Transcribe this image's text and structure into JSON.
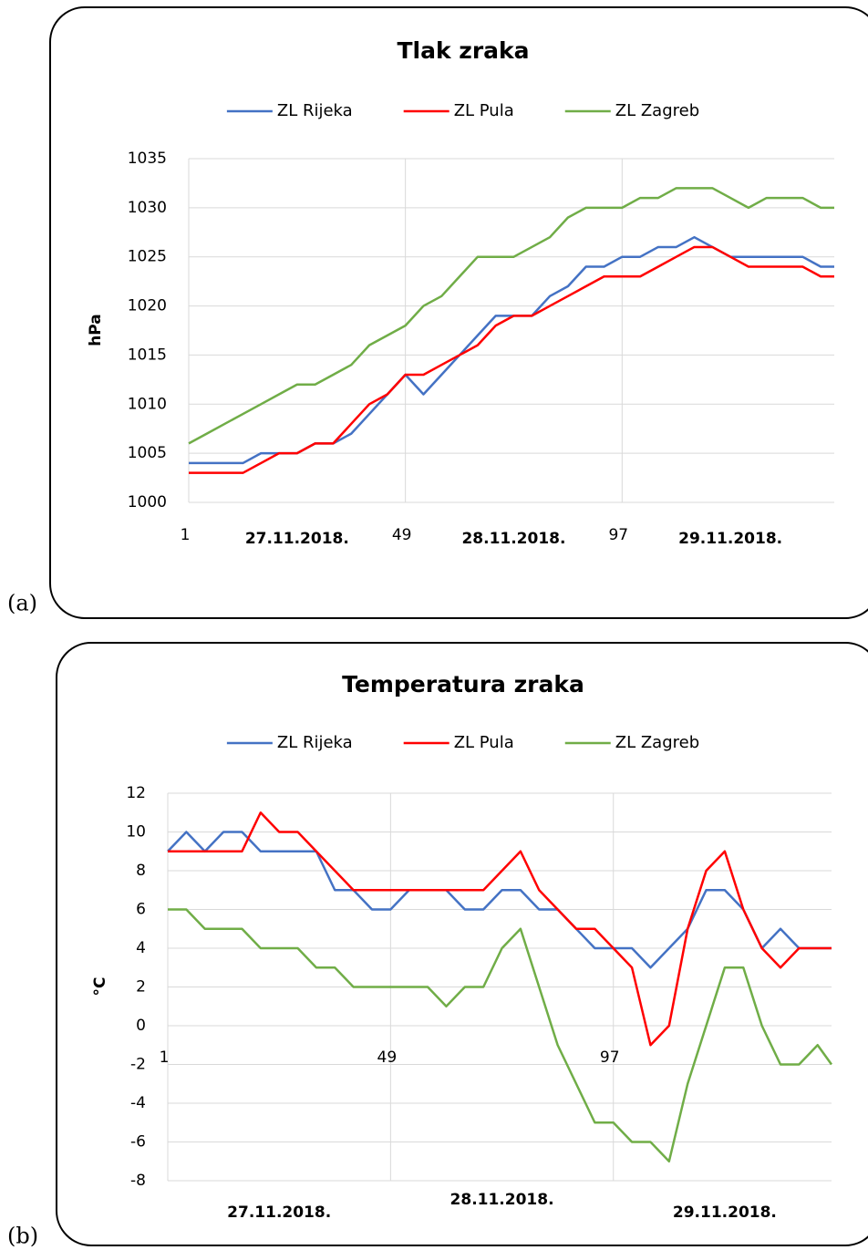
{
  "chart_data": [
    {
      "type": "line",
      "panel_label": "(a)",
      "title": "Tlak zraka",
      "y_label": "hPa",
      "x": [
        1,
        5,
        9,
        13,
        17,
        21,
        25,
        29,
        33,
        37,
        41,
        45,
        49,
        53,
        57,
        61,
        65,
        69,
        73,
        77,
        81,
        85,
        89,
        93,
        97,
        101,
        105,
        109,
        113,
        117,
        121,
        125,
        129,
        133,
        137,
        141,
        144
      ],
      "xlim": [
        1,
        144
      ],
      "xticks": [
        1,
        49,
        97
      ],
      "ylim": [
        1000,
        1035
      ],
      "yticks": [
        1000,
        1005,
        1010,
        1015,
        1020,
        1025,
        1030,
        1035
      ],
      "grid": true,
      "date_labels": [
        "27.11.2018.",
        "28.11.2018.",
        "29.11.2018."
      ],
      "legend": "top",
      "series": [
        {
          "name": "ZL Rijeka",
          "color": "#4472c4",
          "values": [
            1004,
            1004,
            1004,
            1004,
            1005,
            1005,
            1005,
            1006,
            1006,
            1007,
            1009,
            1011,
            1013,
            1011,
            1013,
            1015,
            1017,
            1019,
            1019,
            1019,
            1021,
            1022,
            1024,
            1024,
            1025,
            1025,
            1026,
            1026,
            1027,
            1026,
            1025,
            1025,
            1025,
            1025,
            1025,
            1024,
            1024
          ]
        },
        {
          "name": "ZL Pula",
          "color": "#ff0000",
          "values": [
            1003,
            1003,
            1003,
            1003,
            1004,
            1005,
            1005,
            1006,
            1006,
            1008,
            1010,
            1011,
            1013,
            1013,
            1014,
            1015,
            1016,
            1018,
            1019,
            1019,
            1020,
            1021,
            1022,
            1023,
            1023,
            1023,
            1024,
            1025,
            1026,
            1026,
            1025,
            1024,
            1024,
            1024,
            1024,
            1023,
            1023
          ]
        },
        {
          "name": "ZL Zagreb",
          "color": "#70ad47",
          "values": [
            1006,
            1007,
            1008,
            1009,
            1010,
            1011,
            1012,
            1012,
            1013,
            1014,
            1016,
            1017,
            1018,
            1020,
            1021,
            1023,
            1025,
            1025,
            1025,
            1026,
            1027,
            1029,
            1030,
            1030,
            1030,
            1031,
            1031,
            1032,
            1032,
            1032,
            1031,
            1030,
            1031,
            1031,
            1031,
            1030,
            1030
          ]
        }
      ]
    },
    {
      "type": "line",
      "panel_label": "(b)",
      "title": "Temperatura zraka",
      "y_label": "°C",
      "x": [
        1,
        5,
        9,
        13,
        17,
        21,
        25,
        29,
        33,
        37,
        41,
        45,
        49,
        53,
        57,
        61,
        65,
        69,
        73,
        77,
        81,
        85,
        89,
        93,
        97,
        101,
        105,
        109,
        113,
        117,
        121,
        125,
        129,
        133,
        137,
        141,
        144
      ],
      "xlim": [
        1,
        144
      ],
      "xticks": [
        1,
        49,
        97
      ],
      "ylim": [
        -8,
        12
      ],
      "yticks": [
        -8,
        -6,
        -4,
        -2,
        0,
        2,
        4,
        6,
        8,
        10,
        12
      ],
      "grid": true,
      "date_labels": [
        "27.11.2018.",
        "28.11.2018.",
        "29.11.2018."
      ],
      "legend": "top",
      "series": [
        {
          "name": "ZL Rijeka",
          "color": "#4472c4",
          "values": [
            9,
            10,
            9,
            10,
            10,
            9,
            9,
            9,
            9,
            7,
            7,
            6,
            6,
            7,
            7,
            7,
            6,
            6,
            7,
            7,
            6,
            6,
            5,
            4,
            4,
            4,
            3,
            4,
            5,
            7,
            7,
            6,
            4,
            5,
            4,
            4,
            4
          ]
        },
        {
          "name": "ZL Pula",
          "color": "#ff0000",
          "values": [
            9,
            9,
            9,
            9,
            9,
            11,
            10,
            10,
            9,
            8,
            7,
            7,
            7,
            7,
            7,
            7,
            7,
            7,
            8,
            9,
            7,
            6,
            5,
            5,
            4,
            3,
            -1,
            0,
            5,
            8,
            9,
            6,
            4,
            3,
            4,
            4,
            4
          ]
        },
        {
          "name": "ZL Zagreb",
          "color": "#70ad47",
          "values": [
            6,
            6,
            5,
            5,
            5,
            4,
            4,
            4,
            3,
            3,
            2,
            2,
            2,
            2,
            2,
            1,
            2,
            2,
            4,
            5,
            2,
            -1,
            -3,
            -5,
            -5,
            -6,
            -6,
            -7,
            -3,
            0,
            3,
            3,
            0,
            -2,
            -2,
            -1,
            -2
          ]
        }
      ]
    }
  ]
}
